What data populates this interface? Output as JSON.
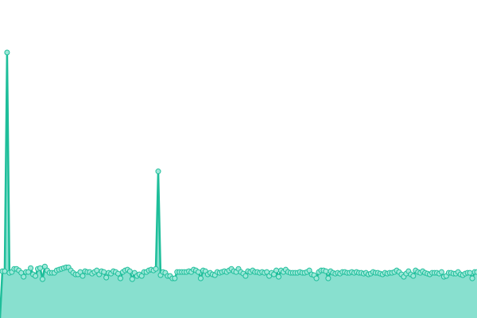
{
  "chart_data": {
    "type": "area",
    "title": "",
    "xlabel": "",
    "ylabel": "",
    "grid": false,
    "legend": "none",
    "xlim": [
      0,
      127
    ],
    "ylim": [
      0,
      335
    ],
    "colors": {
      "line": "#1ebe9a",
      "fill": "#88e0cf",
      "marker_fill": "#9ee8d9"
    },
    "series": [
      {
        "values": [
          0,
          59,
          59,
          335,
          57,
          58,
          62,
          62,
          60,
          57,
          52,
          58,
          58,
          63,
          55,
          53,
          62,
          63,
          49,
          65,
          60,
          57,
          57,
          57,
          60,
          61,
          62,
          63,
          64,
          64,
          60,
          57,
          55,
          55,
          58,
          53,
          59,
          58,
          58,
          56,
          58,
          60,
          55,
          59,
          58,
          51,
          57,
          56,
          59,
          58,
          56,
          50,
          58,
          60,
          61,
          59,
          49,
          57,
          53,
          55,
          53,
          58,
          58,
          60,
          61,
          60,
          62,
          185,
          54,
          58,
          57,
          53,
          53,
          50,
          50,
          58,
          58,
          58,
          58,
          58,
          59,
          58,
          61,
          60,
          58,
          50,
          60,
          59,
          55,
          57,
          55,
          54,
          58,
          57,
          58,
          59,
          58,
          60,
          62,
          59,
          58,
          62,
          58,
          56,
          53,
          59,
          58,
          60,
          58,
          58,
          57,
          58,
          57,
          58,
          53,
          57,
          55,
          60,
          52,
          60,
          58,
          61,
          58,
          57,
          57,
          57,
          57,
          58,
          57,
          57,
          58,
          60,
          55,
          54,
          50,
          58,
          60,
          60,
          59,
          50,
          59,
          57,
          56,
          57,
          56,
          58,
          58,
          57,
          57,
          58,
          57,
          58,
          57,
          57,
          56,
          57,
          55,
          56,
          58,
          57,
          57,
          56,
          55,
          57,
          56,
          57,
          57,
          58,
          60,
          58,
          55,
          52,
          56,
          59,
          55,
          53,
          60,
          58,
          57,
          59,
          57,
          56,
          55,
          57,
          57,
          57,
          56,
          58,
          52,
          53,
          57,
          57,
          56,
          56,
          58,
          55,
          54,
          56,
          57,
          57,
          50,
          58,
          58
        ]
      }
    ]
  }
}
